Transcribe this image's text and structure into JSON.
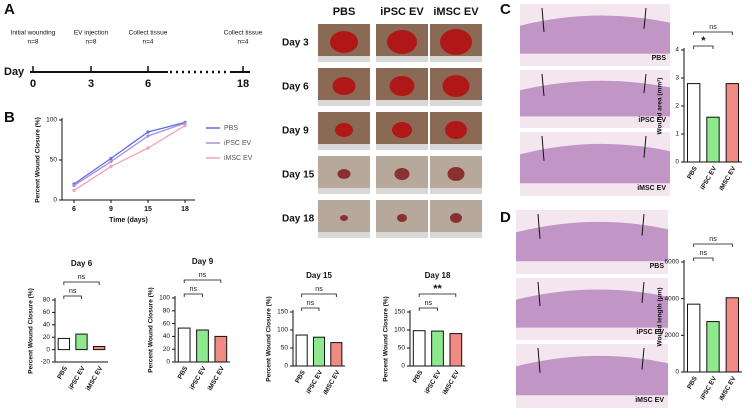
{
  "panels": [
    "A",
    "B",
    "C",
    "D"
  ],
  "timeline": {
    "day_label": "Day",
    "events": [
      {
        "label": "Initial wounding",
        "n": "n=8",
        "day": 0
      },
      {
        "label": "EV injection",
        "n": "n=8",
        "day": 3
      },
      {
        "label": "Collect tissue",
        "n": "n=4",
        "day": 6
      },
      {
        "label": "Collect tissue",
        "n": "n=4",
        "day": 18
      }
    ]
  },
  "photos": {
    "columns": [
      "PBS",
      "iPSC EV",
      "iMSC EV"
    ],
    "rows": [
      "Day 3",
      "Day 6",
      "Day 9",
      "Day 15",
      "Day 18"
    ]
  },
  "histology": {
    "C": [
      "PBS",
      "iPSC EV",
      "iMSC EV"
    ],
    "D": [
      "PBS",
      "iPSC EV",
      "iMSC EV"
    ]
  },
  "chart_data": [
    {
      "type": "line",
      "x_label": "Time (days)",
      "y_label": "Percent Wound Closure (%)",
      "categories": [
        "6",
        "9",
        "15",
        "18"
      ],
      "ylim": [
        0,
        100
      ],
      "yticks": [
        0,
        50,
        100
      ],
      "series": [
        {
          "name": "PBS",
          "color": "#5a6fe0",
          "values": [
            20,
            52,
            85,
            97
          ]
        },
        {
          "name": "iPSC EV",
          "color": "#a88ee0",
          "values": [
            18,
            48,
            80,
            96
          ]
        },
        {
          "name": "iMSC EV",
          "color": "#f2a2b4",
          "values": [
            12,
            42,
            65,
            93
          ]
        }
      ]
    },
    {
      "type": "bar",
      "title": "Day 6",
      "y_label": "Percent Wound Closure (%)",
      "categories": [
        "PBS",
        "iPSC EV",
        "iMSC EV"
      ],
      "values": [
        18,
        25,
        5
      ],
      "colors": [
        "#ffffff",
        "#8ee88e",
        "#f28a84"
      ],
      "ylim": [
        -20,
        80
      ],
      "yticks": [
        -20,
        0,
        20,
        40,
        60,
        80
      ],
      "comparisons": [
        {
          "groups": [
            0,
            1
          ],
          "label": "ns"
        },
        {
          "groups": [
            0,
            2
          ],
          "label": "ns"
        }
      ]
    },
    {
      "type": "bar",
      "title": "Day 9",
      "y_label": "Percent Wound Closure (%)",
      "categories": [
        "PBS",
        "iPSC EV",
        "iMSC EV"
      ],
      "values": [
        53,
        50,
        40
      ],
      "colors": [
        "#ffffff",
        "#8ee88e",
        "#f28a84"
      ],
      "ylim": [
        0,
        100
      ],
      "yticks": [
        0,
        20,
        40,
        60,
        80,
        100
      ],
      "comparisons": [
        {
          "groups": [
            0,
            1
          ],
          "label": "ns"
        },
        {
          "groups": [
            0,
            2
          ],
          "label": "ns"
        }
      ]
    },
    {
      "type": "bar",
      "title": "Day 15",
      "y_label": "Percent Wound Closure (%)",
      "categories": [
        "PBS",
        "iPSC EV",
        "iMSC EV"
      ],
      "values": [
        86,
        80,
        65
      ],
      "colors": [
        "#ffffff",
        "#8ee88e",
        "#f28a84"
      ],
      "ylim": [
        0,
        150
      ],
      "yticks": [
        0,
        50,
        100,
        150
      ],
      "comparisons": [
        {
          "groups": [
            0,
            1
          ],
          "label": "ns"
        },
        {
          "groups": [
            0,
            2
          ],
          "label": "ns"
        }
      ]
    },
    {
      "type": "bar",
      "title": "Day 18",
      "y_label": "Percent Wound Closure (%)",
      "categories": [
        "PBS",
        "iPSC EV",
        "iMSC EV"
      ],
      "values": [
        98,
        97,
        90
      ],
      "colors": [
        "#ffffff",
        "#8ee88e",
        "#f28a84"
      ],
      "ylim": [
        0,
        150
      ],
      "yticks": [
        0,
        50,
        100,
        150
      ],
      "comparisons": [
        {
          "groups": [
            0,
            1
          ],
          "label": "ns"
        },
        {
          "groups": [
            0,
            2
          ],
          "label": "**"
        }
      ]
    },
    {
      "type": "bar",
      "y_label": "Wound area (mm²)",
      "categories": [
        "PBS",
        "iPSC EV",
        "iMSC EV"
      ],
      "values": [
        2.8,
        1.6,
        2.8
      ],
      "colors": [
        "#ffffff",
        "#8ee88e",
        "#f28a84"
      ],
      "ylim": [
        0,
        4
      ],
      "yticks": [
        0,
        1,
        2,
        3,
        4
      ],
      "comparisons": [
        {
          "groups": [
            0,
            1
          ],
          "label": "*"
        },
        {
          "groups": [
            0,
            2
          ],
          "label": "ns"
        }
      ]
    },
    {
      "type": "bar",
      "y_label": "Wound length (μm)",
      "categories": [
        "PBS",
        "iPSC EV",
        "iMSC EV"
      ],
      "values": [
        3700,
        2750,
        4050
      ],
      "colors": [
        "#ffffff",
        "#8ee88e",
        "#f28a84"
      ],
      "ylim": [
        0,
        6000
      ],
      "yticks": [
        0,
        2000,
        4000,
        6000
      ],
      "comparisons": [
        {
          "groups": [
            0,
            1
          ],
          "label": "ns"
        },
        {
          "groups": [
            0,
            2
          ],
          "label": "ns"
        }
      ]
    }
  ]
}
